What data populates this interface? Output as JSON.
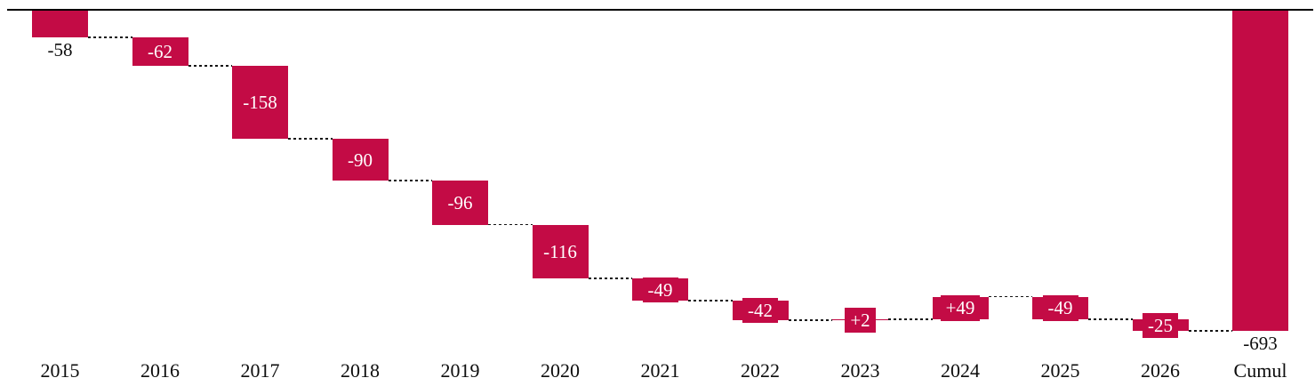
{
  "chart_data": {
    "type": "bar",
    "subtype": "waterfall",
    "title": "",
    "xlabel": "",
    "ylabel": "",
    "legend": "none",
    "grid": "off",
    "baseline_value": 0,
    "ylim": [
      -710,
      0
    ],
    "bar_color": "#C30B45",
    "inside_label_color": "#FFFFFF",
    "outside_label_color": "#0D0D0D",
    "connector_style": "dashed-black",
    "categories": [
      "2015",
      "2016",
      "2017",
      "2018",
      "2019",
      "2020",
      "2021",
      "2022",
      "2023",
      "2024",
      "2025",
      "2026",
      "Cumul"
    ],
    "values": [
      -58,
      -62,
      -158,
      -90,
      -96,
      -116,
      -49,
      -42,
      2,
      49,
      -49,
      -25,
      -693
    ],
    "value_labels": [
      "-58",
      "-62",
      "-158",
      "-90",
      "-96",
      "-116",
      "-49",
      "-42",
      "+2",
      "+49",
      "-49",
      "-25",
      "-693"
    ],
    "is_total": [
      false,
      false,
      false,
      false,
      false,
      false,
      false,
      false,
      false,
      false,
      false,
      false,
      true
    ],
    "label_placement": [
      "below",
      "inside",
      "inside",
      "inside",
      "inside",
      "inside",
      "inside",
      "inside",
      "inside",
      "inside",
      "inside",
      "inside",
      "below"
    ],
    "cumulative_levels": [
      -58,
      -120,
      -278,
      -368,
      -464,
      -580,
      -629,
      -671,
      -669,
      -620,
      -669,
      -694
    ]
  }
}
